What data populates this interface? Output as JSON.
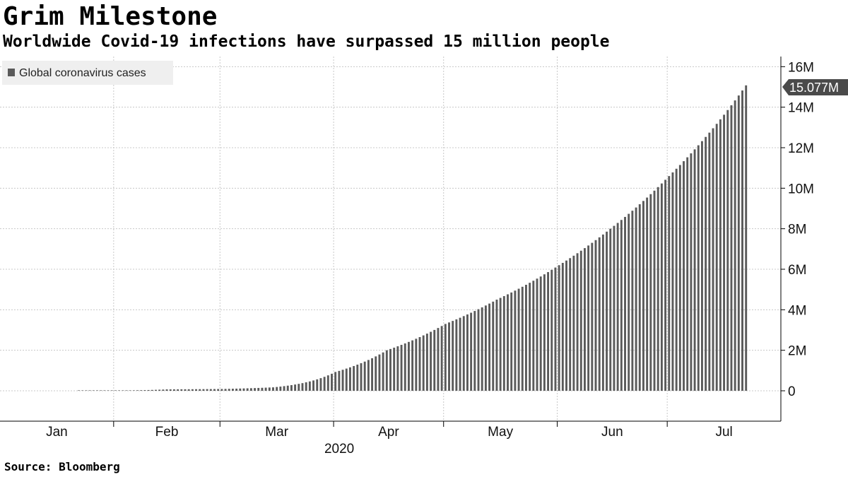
{
  "title": "Grim Milestone",
  "subtitle": "Worldwide Covid-19 infections have surpassed 15 million people",
  "source": "Source: Bloomberg",
  "colors": {
    "bar": "#5a5a5a",
    "grid": "#c8c8c8",
    "axis": "#000000",
    "legend_bg": "#efefef",
    "callout_bg": "#4a4a4a"
  },
  "chart_data": {
    "type": "bar",
    "series": [
      {
        "name": "Global coronavirus cases",
        "daily_anchor_values": [
          {
            "date": "2020-01-22",
            "value": 0
          },
          {
            "date": "2020-02-01",
            "value": 0.012
          },
          {
            "date": "2020-02-15",
            "value": 0.069
          },
          {
            "date": "2020-03-01",
            "value": 0.088
          },
          {
            "date": "2020-03-15",
            "value": 0.17
          },
          {
            "date": "2020-04-01",
            "value": 0.93
          },
          {
            "date": "2020-04-15",
            "value": 2.0
          },
          {
            "date": "2020-05-01",
            "value": 3.3
          },
          {
            "date": "2020-05-15",
            "value": 4.5
          },
          {
            "date": "2020-06-01",
            "value": 6.2
          },
          {
            "date": "2020-06-15",
            "value": 8.0
          },
          {
            "date": "2020-07-01",
            "value": 10.6
          },
          {
            "date": "2020-07-15",
            "value": 13.4
          },
          {
            "date": "2020-07-22",
            "value": 15.077
          }
        ]
      }
    ],
    "value_unit": "M",
    "last_value_label": "15.077M",
    "x_start": "2020-01-01",
    "x_end": "2020-07-31",
    "first_bar": "2020-01-22",
    "last_bar": "2020-07-22",
    "month_labels": [
      "Jan",
      "Feb",
      "Mar",
      "Apr",
      "May",
      "Jun",
      "Jul"
    ],
    "year_label": "2020",
    "y_ticks": [
      0,
      2,
      4,
      6,
      8,
      10,
      12,
      14,
      16
    ],
    "y_tick_labels": [
      "0",
      "2M",
      "4M",
      "6M",
      "8M",
      "10M",
      "12M",
      "14M",
      "16M"
    ],
    "ylim": [
      -1.5,
      16.5
    ],
    "grid": true,
    "legend_position": "top-left",
    "y_axis_side": "right"
  }
}
